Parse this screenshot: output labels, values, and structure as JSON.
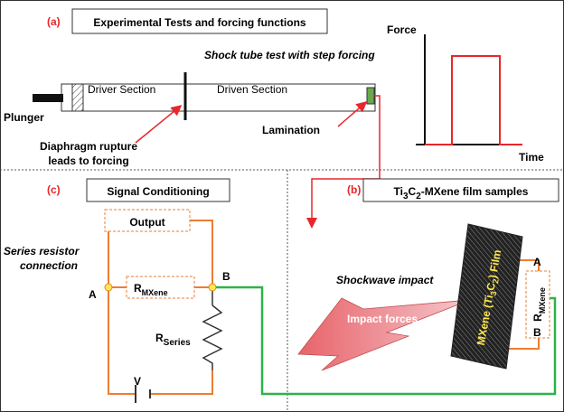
{
  "panel_a": {
    "label": "(a)",
    "title": "Experimental Tests and forcing functions",
    "subtitle": "Shock tube test with step forcing",
    "plunger": "Plunger",
    "driver": "Driver Section",
    "driven": "Driven Section",
    "lamination": "Lamination",
    "diaphragm": [
      "Diaphragm rupture",
      "leads to forcing"
    ],
    "force_axis": "Force",
    "time_axis": "Time"
  },
  "panel_b": {
    "label": "(b)",
    "title": [
      "Ti",
      "3",
      "C",
      "2",
      "-MXene film samples"
    ],
    "shockwave": "Shockwave impact",
    "impact": "Impact forces",
    "film": [
      "MXene (Ti",
      "3",
      "C",
      "2",
      ") Film"
    ],
    "node_a": "A",
    "node_b": "B",
    "resistor": [
      "R",
      "MXene"
    ]
  },
  "panel_c": {
    "label": "(c)",
    "title": "Signal Conditioning",
    "output": "Output",
    "note": [
      "Series resistor",
      "connection"
    ],
    "node_a": "A",
    "node_b": "B",
    "r_mxene": [
      "R",
      "MXene"
    ],
    "r_series": [
      "R",
      "Series"
    ],
    "source": "V"
  }
}
